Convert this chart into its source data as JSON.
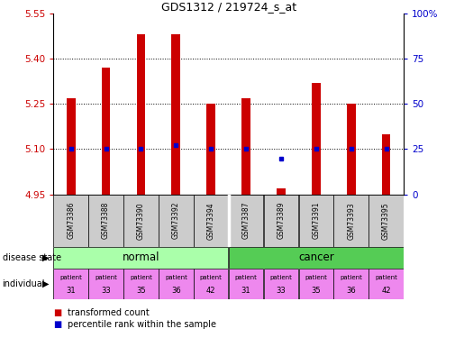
{
  "title": "GDS1312 / 219724_s_at",
  "samples": [
    "GSM73386",
    "GSM73388",
    "GSM73390",
    "GSM73392",
    "GSM73394",
    "GSM73387",
    "GSM73389",
    "GSM73391",
    "GSM73393",
    "GSM73395"
  ],
  "transformed_count": [
    5.27,
    5.37,
    5.48,
    5.48,
    5.25,
    5.27,
    4.97,
    5.32,
    5.25,
    5.15
  ],
  "percentile_rank": [
    25,
    25,
    25,
    27,
    25,
    25,
    20,
    25,
    25,
    25
  ],
  "disease_state": [
    "normal",
    "normal",
    "normal",
    "normal",
    "normal",
    "cancer",
    "cancer",
    "cancer",
    "cancer",
    "cancer"
  ],
  "individual": [
    "31",
    "33",
    "35",
    "36",
    "42",
    "31",
    "33",
    "35",
    "36",
    "42"
  ],
  "ymin": 4.95,
  "ymax": 5.55,
  "yticks": [
    4.95,
    5.1,
    5.25,
    5.4,
    5.55
  ],
  "grid_lines": [
    5.1,
    5.25,
    5.4
  ],
  "right_ytick_vals": [
    0,
    25,
    50,
    75,
    100
  ],
  "right_ytick_labels": [
    "0",
    "25",
    "50",
    "75",
    "100%"
  ],
  "bar_color": "#cc0000",
  "blue_color": "#0000cc",
  "normal_color": "#aaffaa",
  "cancer_color": "#55cc55",
  "patient_color": "#ee88ee",
  "sample_bg": "#cccccc",
  "bar_width": 0.25
}
